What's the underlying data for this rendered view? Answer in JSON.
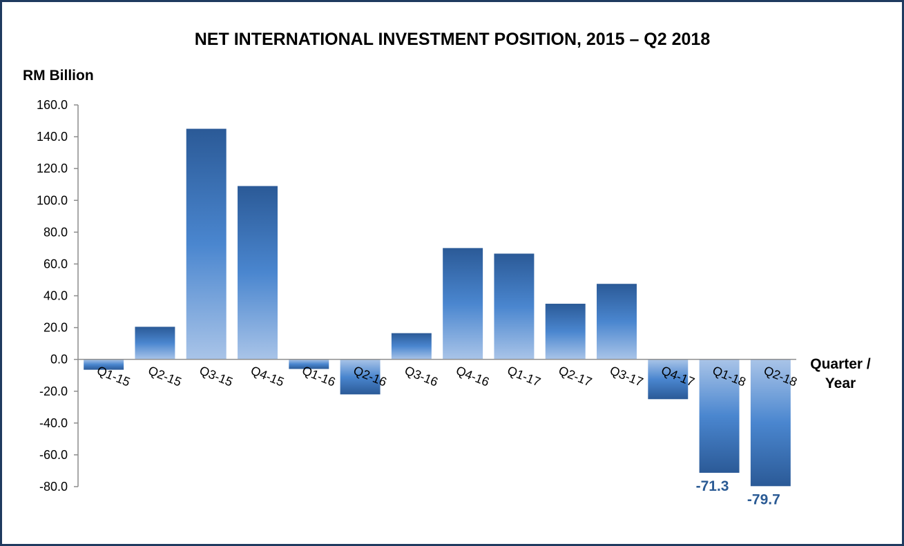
{
  "chart_data": {
    "type": "bar",
    "title": "NET INTERNATIONAL  INVESTMENT POSITION, 2015 – Q2 2018",
    "ylabel": "RM Billion",
    "xlabel_line1": "Quarter /",
    "xlabel_line2": "Year",
    "ylim": [
      -80,
      160
    ],
    "yticks": [
      "160.0",
      "140.0",
      "120.0",
      "100.0",
      "80.0",
      "60.0",
      "40.0",
      "20.0",
      "0.0",
      "-20.0",
      "-40.0",
      "-60.0",
      "-80.0"
    ],
    "grid": false,
    "categories": [
      "Q1-15",
      "Q2-15",
      "Q3-15",
      "Q4-15",
      "Q1-16",
      "Q2-16",
      "Q3-16",
      "Q4-16",
      "Q1-17",
      "Q2-17",
      "Q3-17",
      "Q4-17",
      "Q1-18",
      "Q2-18"
    ],
    "values": [
      -6.5,
      20.5,
      145.0,
      109.0,
      -6.0,
      -22.0,
      16.5,
      70.0,
      66.5,
      35.0,
      47.5,
      -25.0,
      -71.3,
      -79.7
    ],
    "data_labels": [
      {
        "index": 12,
        "text": "-71.3"
      },
      {
        "index": 13,
        "text": "-79.7"
      }
    ],
    "colors": {
      "bar_dark": "#2b5a97",
      "bar_mid": "#4a86cf",
      "bar_light": "#a9c4e8",
      "axis": "#8c8c8c",
      "frame": "#1f3a5f",
      "data_label": "#2a5a94"
    }
  }
}
